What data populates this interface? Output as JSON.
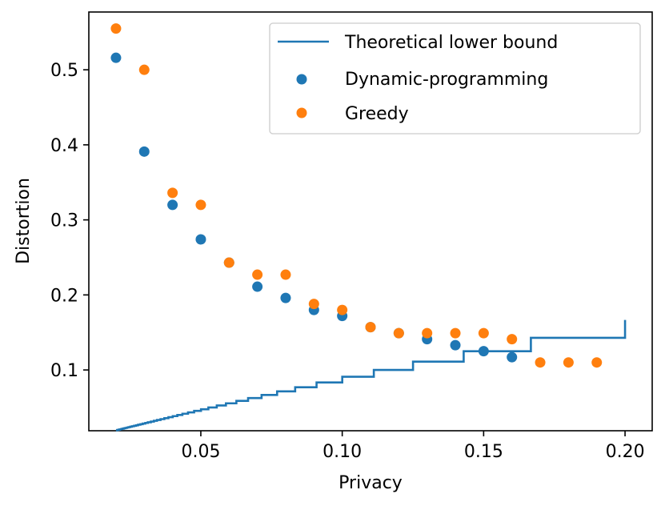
{
  "chart_data": {
    "type": "line+scatter",
    "title": "",
    "xlabel": "Privacy",
    "ylabel": "Distortion",
    "xlim": [
      0.0104,
      0.2096
    ],
    "ylim": [
      0.019,
      0.577
    ],
    "xticks": [
      0.05,
      0.1,
      0.15,
      0.2
    ],
    "xtick_labels": [
      "0.05",
      "0.10",
      "0.15",
      "0.20"
    ],
    "yticks": [
      0.1,
      0.2,
      0.3,
      0.4,
      0.5
    ],
    "ytick_labels": [
      "0.1",
      "0.2",
      "0.3",
      "0.4",
      "0.5"
    ],
    "grid": false,
    "legend_position": "top-right",
    "colors": {
      "blue": "#1f77b4",
      "orange": "#ff7f0e"
    },
    "series": [
      {
        "name": "Theoretical lower bound",
        "kind": "step-line",
        "color": "#1f77b4",
        "x_start": 0.02,
        "x_end": 0.2,
        "formula": "1/(ceil(1/x)+1)",
        "note": "staircase curve from x = 0.02 to x = 0.20"
      },
      {
        "name": "Dynamic-programming",
        "kind": "scatter",
        "color": "#1f77b4",
        "x": [
          0.02,
          0.03,
          0.04,
          0.05,
          0.06,
          0.07,
          0.08,
          0.09,
          0.1,
          0.11,
          0.12,
          0.13,
          0.14,
          0.15,
          0.16
        ],
        "y": [
          0.516,
          0.391,
          0.32,
          0.274,
          0.243,
          0.211,
          0.196,
          0.18,
          0.172,
          0.157,
          0.149,
          0.141,
          0.133,
          0.125,
          0.117
        ]
      },
      {
        "name": "Greedy",
        "kind": "scatter",
        "color": "#ff7f0e",
        "x": [
          0.02,
          0.03,
          0.04,
          0.05,
          0.06,
          0.07,
          0.08,
          0.09,
          0.1,
          0.11,
          0.12,
          0.13,
          0.14,
          0.15,
          0.16,
          0.17,
          0.18,
          0.19
        ],
        "y": [
          0.555,
          0.5,
          0.336,
          0.32,
          0.243,
          0.227,
          0.227,
          0.188,
          0.18,
          0.157,
          0.149,
          0.149,
          0.149,
          0.149,
          0.141,
          0.11,
          0.11,
          0.11
        ]
      }
    ]
  }
}
